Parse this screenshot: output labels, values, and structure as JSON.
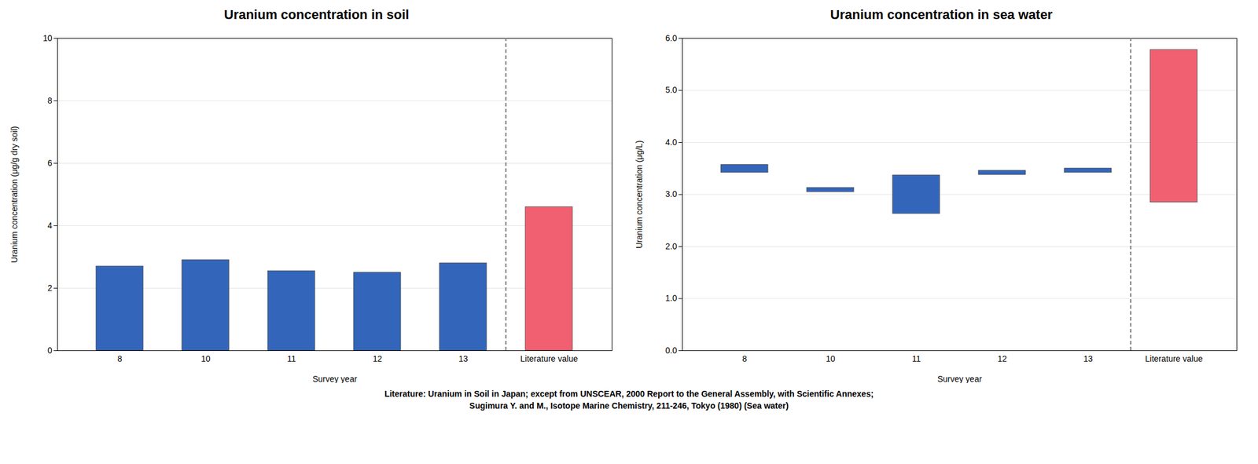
{
  "chart_data": [
    {
      "type": "bar",
      "title": "Uranium concentration in soil",
      "xlabel": "Survey year",
      "ylabel": "Uranium concentration (μg/g dry soil)",
      "categories": [
        "8",
        "10",
        "11",
        "12",
        "13",
        "Literature value"
      ],
      "values": [
        2.7,
        2.9,
        2.55,
        2.5,
        2.8,
        4.6
      ],
      "colors": [
        "#3366bb",
        "#3366bb",
        "#3366bb",
        "#3366bb",
        "#3366bb",
        "#f06070"
      ],
      "ylim": [
        0,
        10
      ],
      "yticks": [
        0,
        2,
        4,
        6,
        8,
        10
      ],
      "grid": true
    },
    {
      "type": "bar",
      "title": "Uranium concentration in sea water",
      "xlabel": "Survey year",
      "ylabel": "Uranium concentration (μg/L)",
      "categories": [
        "8",
        "10",
        "11",
        "12",
        "13",
        "Literature value"
      ],
      "bottoms": [
        3.42,
        3.05,
        2.63,
        3.38,
        3.42,
        2.85
      ],
      "values": [
        3.57,
        3.13,
        3.37,
        3.46,
        3.5,
        5.78
      ],
      "colors": [
        "#3366bb",
        "#3366bb",
        "#3366bb",
        "#3366bb",
        "#3366bb",
        "#f06070"
      ],
      "ylim": [
        0,
        6
      ],
      "yticks": [
        0,
        1,
        2,
        3,
        4,
        5,
        6
      ],
      "grid": true
    }
  ],
  "footnote": [
    "Literature: Uranium in Soil in Japan; except from UNSCEAR, 2000 Report to the General Assembly, with Scientific Annexes;",
    "Sugimura Y. and M., Isotope Marine Chemistry, 211-246, Tokyo (1980) (Sea water)"
  ]
}
